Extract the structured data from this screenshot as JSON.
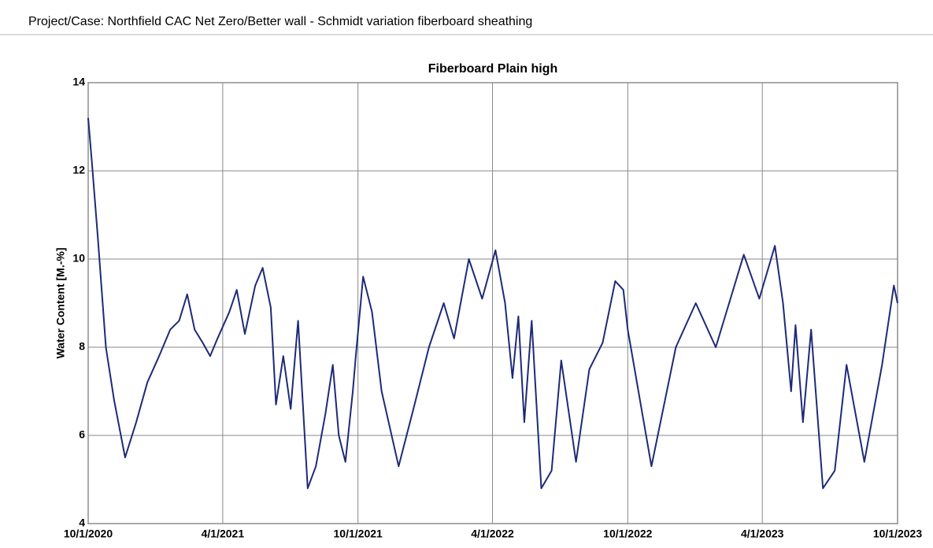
{
  "header": {
    "project": "Project/Case:  Northfield CAC Net Zero/Better wall - Schmidt variation fiberboard sheathing"
  },
  "chart_data": {
    "type": "line",
    "title": "Fiberboard Plain high",
    "y_label": "Water Content [M.-%]",
    "grid": true,
    "xlim": [
      "2020-10-01",
      "2023-10-01"
    ],
    "xticks": [
      {
        "value": "2020-10-01",
        "label": "10/1/2020"
      },
      {
        "value": "2021-04-01",
        "label": "4/1/2021"
      },
      {
        "value": "2021-10-01",
        "label": "10/1/2021"
      },
      {
        "value": "2022-04-01",
        "label": "4/1/2022"
      },
      {
        "value": "2022-10-01",
        "label": "10/1/2022"
      },
      {
        "value": "2023-04-01",
        "label": "4/1/2023"
      },
      {
        "value": "2023-10-01",
        "label": "10/1/2023"
      }
    ],
    "ylim": [
      4,
      14
    ],
    "yticks": [
      4,
      6,
      8,
      10,
      12,
      14
    ],
    "x": [
      "2020-10-01",
      "2020-10-06",
      "2020-10-14",
      "2020-10-25",
      "2020-11-05",
      "2020-11-20",
      "2020-12-05",
      "2020-12-20",
      "2021-01-05",
      "2021-01-20",
      "2021-02-01",
      "2021-02-12",
      "2021-02-22",
      "2021-03-05",
      "2021-03-15",
      "2021-03-25",
      "2021-04-10",
      "2021-04-20",
      "2021-05-01",
      "2021-05-15",
      "2021-05-25",
      "2021-06-05",
      "2021-06-12",
      "2021-06-22",
      "2021-07-02",
      "2021-07-12",
      "2021-07-25",
      "2021-08-05",
      "2021-08-18",
      "2021-08-28",
      "2021-09-05",
      "2021-09-14",
      "2021-09-24",
      "2021-09-28",
      "2021-10-08",
      "2021-10-20",
      "2021-11-02",
      "2021-11-25",
      "2021-12-15",
      "2022-01-05",
      "2022-01-25",
      "2022-02-08",
      "2022-02-28",
      "2022-03-18",
      "2022-04-05",
      "2022-04-18",
      "2022-04-28",
      "2022-05-06",
      "2022-05-14",
      "2022-05-24",
      "2022-06-06",
      "2022-06-20",
      "2022-07-03",
      "2022-07-23",
      "2022-08-10",
      "2022-08-28",
      "2022-09-14",
      "2022-09-25",
      "2022-10-01",
      "2022-11-02",
      "2022-12-05",
      "2023-01-01",
      "2023-01-28",
      "2023-03-07",
      "2023-03-28",
      "2023-04-18",
      "2023-04-29",
      "2023-05-10",
      "2023-05-16",
      "2023-05-26",
      "2023-06-06",
      "2023-06-22",
      "2023-07-08",
      "2023-07-24",
      "2023-08-17",
      "2023-09-10",
      "2023-09-26",
      "2023-10-01"
    ],
    "series": [
      {
        "name": "Water Content",
        "color": "#1e2a78",
        "values": [
          13.2,
          12.2,
          10.5,
          8.0,
          6.8,
          5.5,
          6.3,
          7.2,
          7.8,
          8.4,
          8.6,
          9.2,
          8.4,
          8.1,
          7.8,
          8.2,
          8.8,
          9.3,
          8.3,
          9.4,
          9.8,
          8.9,
          6.7,
          7.8,
          6.6,
          8.6,
          4.8,
          5.3,
          6.5,
          7.6,
          6.0,
          5.4,
          7.0,
          7.8,
          9.6,
          8.8,
          7.0,
          5.3,
          6.6,
          8.0,
          9.0,
          8.2,
          10.0,
          9.1,
          10.2,
          9.0,
          7.3,
          8.7,
          6.3,
          8.6,
          4.8,
          5.2,
          7.7,
          5.4,
          7.5,
          8.1,
          9.5,
          9.3,
          8.4,
          5.3,
          8.0,
          9.0,
          8.0,
          10.1,
          9.1,
          10.3,
          9.0,
          7.0,
          8.5,
          6.3,
          8.4,
          4.8,
          5.2,
          7.6,
          5.4,
          7.6,
          9.4,
          9.0
        ]
      }
    ]
  }
}
